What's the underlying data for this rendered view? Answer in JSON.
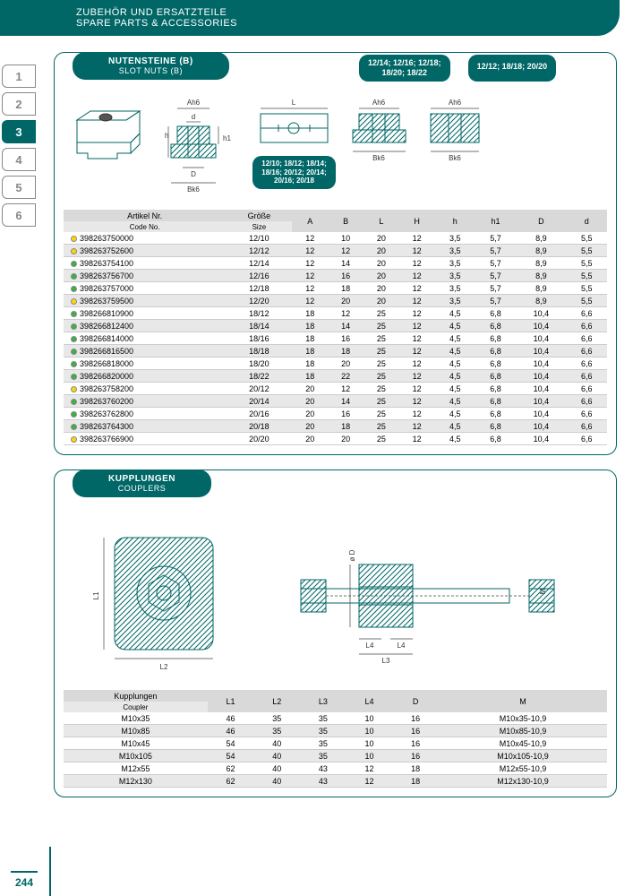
{
  "header": {
    "line1": "ZUBEHÖR UND ERSATZTEILE",
    "line2": "SPARE PARTS & ACCESSORIES"
  },
  "tabs": [
    "1",
    "2",
    "3",
    "4",
    "5",
    "6"
  ],
  "active_tab": 2,
  "page_number": "244",
  "section1": {
    "title_de": "NUTENSTEINE (B)",
    "title_en": "SLOT NUTS (B)",
    "group_pill_1": "12/14; 12/16; 12/18;\n18/20; 18/22",
    "group_pill_2": "12/12; 18/18; 20/20",
    "group_pill_3": "12/10; 18/12; 18/14;\n18/16; 20/12; 20/14;\n20/16; 20/18",
    "columns": [
      {
        "de": "Artikel Nr.",
        "en": "Code No."
      },
      {
        "de": "Größe",
        "en": "Size"
      }
    ],
    "headers": [
      "A",
      "B",
      "L",
      "H",
      "h",
      "h1",
      "D",
      "d"
    ],
    "rows": [
      {
        "dot": "yellow",
        "code": "398263750000",
        "size": "12/10",
        "v": [
          "12",
          "10",
          "20",
          "12",
          "3,5",
          "5,7",
          "8,9",
          "5,5"
        ]
      },
      {
        "dot": "yellow",
        "code": "398263752600",
        "size": "12/12",
        "v": [
          "12",
          "12",
          "20",
          "12",
          "3,5",
          "5,7",
          "8,9",
          "5,5"
        ]
      },
      {
        "dot": "green",
        "code": "398263754100",
        "size": "12/14",
        "v": [
          "12",
          "14",
          "20",
          "12",
          "3,5",
          "5,7",
          "8,9",
          "5,5"
        ]
      },
      {
        "dot": "green",
        "code": "398263756700",
        "size": "12/16",
        "v": [
          "12",
          "16",
          "20",
          "12",
          "3,5",
          "5,7",
          "8,9",
          "5,5"
        ]
      },
      {
        "dot": "green",
        "code": "398263757000",
        "size": "12/18",
        "v": [
          "12",
          "18",
          "20",
          "12",
          "3,5",
          "5,7",
          "8,9",
          "5,5"
        ]
      },
      {
        "dot": "yellow",
        "code": "398263759500",
        "size": "12/20",
        "v": [
          "12",
          "20",
          "20",
          "12",
          "3,5",
          "5,7",
          "8,9",
          "5,5"
        ]
      },
      {
        "dot": "green",
        "code": "398266810900",
        "size": "18/12",
        "v": [
          "18",
          "12",
          "25",
          "12",
          "4,5",
          "6,8",
          "10,4",
          "6,6"
        ]
      },
      {
        "dot": "green",
        "code": "398266812400",
        "size": "18/14",
        "v": [
          "18",
          "14",
          "25",
          "12",
          "4,5",
          "6,8",
          "10,4",
          "6,6"
        ]
      },
      {
        "dot": "green",
        "code": "398266814000",
        "size": "18/16",
        "v": [
          "18",
          "16",
          "25",
          "12",
          "4,5",
          "6,8",
          "10,4",
          "6,6"
        ]
      },
      {
        "dot": "green",
        "code": "398266816500",
        "size": "18/18",
        "v": [
          "18",
          "18",
          "25",
          "12",
          "4,5",
          "6,8",
          "10,4",
          "6,6"
        ]
      },
      {
        "dot": "green",
        "code": "398266818000",
        "size": "18/20",
        "v": [
          "18",
          "20",
          "25",
          "12",
          "4,5",
          "6,8",
          "10,4",
          "6,6"
        ]
      },
      {
        "dot": "green",
        "code": "398266820000",
        "size": "18/22",
        "v": [
          "18",
          "22",
          "25",
          "12",
          "4,5",
          "6,8",
          "10,4",
          "6,6"
        ]
      },
      {
        "dot": "yellow",
        "code": "398263758200",
        "size": "20/12",
        "v": [
          "20",
          "12",
          "25",
          "12",
          "4,5",
          "6,8",
          "10,4",
          "6,6"
        ]
      },
      {
        "dot": "green",
        "code": "398263760200",
        "size": "20/14",
        "v": [
          "20",
          "14",
          "25",
          "12",
          "4,5",
          "6,8",
          "10,4",
          "6,6"
        ]
      },
      {
        "dot": "green",
        "code": "398263762800",
        "size": "20/16",
        "v": [
          "20",
          "16",
          "25",
          "12",
          "4,5",
          "6,8",
          "10,4",
          "6,6"
        ]
      },
      {
        "dot": "green",
        "code": "398263764300",
        "size": "20/18",
        "v": [
          "20",
          "18",
          "25",
          "12",
          "4,5",
          "6,8",
          "10,4",
          "6,6"
        ]
      },
      {
        "dot": "yellow",
        "code": "398263766900",
        "size": "20/20",
        "v": [
          "20",
          "20",
          "25",
          "12",
          "4,5",
          "6,8",
          "10,4",
          "6,6"
        ]
      }
    ],
    "diag_labels": {
      "Ah6": "Ah6",
      "d": "d",
      "h": "h",
      "h1": "h1",
      "D": "D",
      "Bk6": "Bk6",
      "L": "L"
    }
  },
  "section2": {
    "title_de": "KUPPLUNGEN",
    "title_en": "COUPLERS",
    "columns": [
      {
        "de": "Kupplungen",
        "en": "Coupler"
      }
    ],
    "headers": [
      "L1",
      "L2",
      "L3",
      "L4",
      "D",
      "M"
    ],
    "rows": [
      {
        "name": "M10x35",
        "v": [
          "46",
          "35",
          "35",
          "10",
          "16",
          "M10x35-10,9"
        ]
      },
      {
        "name": "M10x85",
        "v": [
          "46",
          "35",
          "35",
          "10",
          "16",
          "M10x85-10,9"
        ]
      },
      {
        "name": "M10x45",
        "v": [
          "54",
          "40",
          "35",
          "10",
          "16",
          "M10x45-10,9"
        ]
      },
      {
        "name": "M10x105",
        "v": [
          "54",
          "40",
          "35",
          "10",
          "16",
          "M10x105-10,9"
        ]
      },
      {
        "name": "M12x55",
        "v": [
          "62",
          "40",
          "43",
          "12",
          "18",
          "M12x55-10,9"
        ]
      },
      {
        "name": "M12x130",
        "v": [
          "62",
          "40",
          "43",
          "12",
          "18",
          "M12x130-10,9"
        ]
      }
    ],
    "diag_labels": {
      "L1": "L1",
      "L2": "L2",
      "L3": "L3",
      "L4": "L4",
      "D": "ø D",
      "M": "M"
    }
  },
  "colors": {
    "teal": "#006666",
    "row_even": "#e8e8e8",
    "header_bg": "#d9d9d9"
  }
}
